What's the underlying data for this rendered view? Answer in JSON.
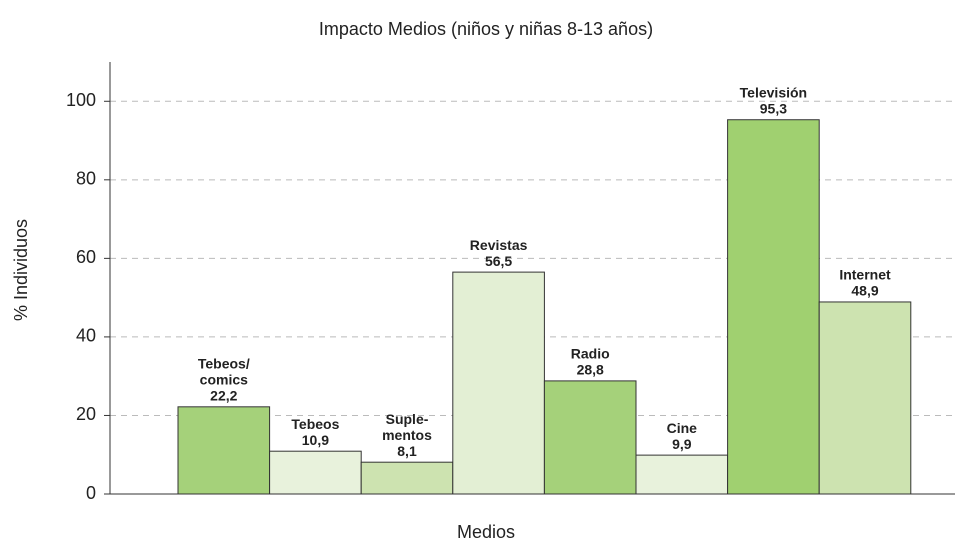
{
  "chart_data": {
    "type": "bar",
    "title": "Impacto Medios (niños y niñas 8-13 años)",
    "x_label": "Medios",
    "y_label": "% Individuos",
    "categories": [
      [
        "Tebeos/",
        "comics"
      ],
      [
        "Tebeos"
      ],
      [
        "Suple-",
        "mentos"
      ],
      [
        "Revistas"
      ],
      [
        "Radio"
      ],
      [
        "Cine"
      ],
      [
        "Televisión"
      ],
      [
        "Internet"
      ]
    ],
    "values": [
      22.2,
      10.9,
      8.1,
      56.5,
      28.8,
      9.9,
      95.3,
      48.9
    ],
    "value_labels": [
      "22,2",
      "10,9",
      "8,1",
      "56,5",
      "28,8",
      "9,9",
      "95,3",
      "48,9"
    ],
    "colors": [
      "#a5d17a",
      "#e8f2dc",
      "#cde3b0",
      "#e3efd4",
      "#a5d17a",
      "#e8f2dc",
      "#a0d070",
      "#cde3b0"
    ],
    "ylim": [
      0,
      110
    ],
    "yticks": [
      0,
      20,
      40,
      60,
      80,
      100
    ],
    "grid": true
  }
}
